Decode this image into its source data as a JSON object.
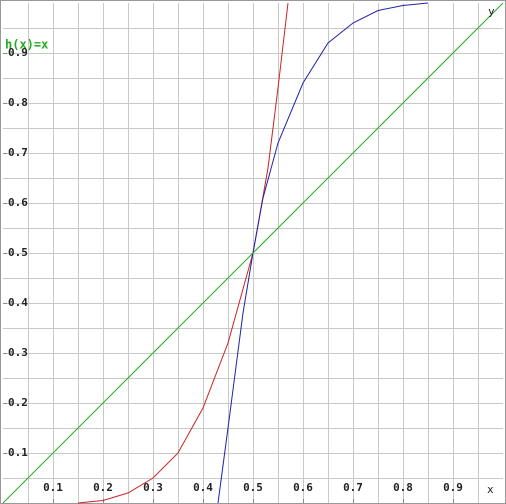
{
  "chart_data": {
    "type": "line",
    "x_label": "x",
    "y_label": "y",
    "annotation": "h(x)=x",
    "xlim": [
      0,
      1
    ],
    "ylim": [
      0,
      1
    ],
    "xticks": [
      0.1,
      0.2,
      0.3,
      0.4,
      0.5,
      0.6,
      0.7,
      0.8,
      0.9
    ],
    "yticks": [
      0.1,
      0.2,
      0.3,
      0.4,
      0.5,
      0.6,
      0.7,
      0.8,
      0.9
    ],
    "xgrid": [
      0.05,
      0.1,
      0.15,
      0.2,
      0.25,
      0.3,
      0.35,
      0.4,
      0.45,
      0.5,
      0.55,
      0.6,
      0.65,
      0.7,
      0.75,
      0.8,
      0.85,
      0.9,
      0.95
    ],
    "ygrid": [
      0.05,
      0.1,
      0.15,
      0.2,
      0.25,
      0.3,
      0.35,
      0.4,
      0.45,
      0.5,
      0.55,
      0.6,
      0.65,
      0.7,
      0.75,
      0.8,
      0.85,
      0.9,
      0.95
    ],
    "grid": true,
    "series": [
      {
        "color": "#cc2222",
        "x": [
          0.15,
          0.2,
          0.25,
          0.3,
          0.35,
          0.4,
          0.45,
          0.5,
          0.53,
          0.55,
          0.57
        ],
        "values": [
          0,
          0.005,
          0.02,
          0.05,
          0.1,
          0.19,
          0.32,
          0.5,
          0.67,
          0.83,
          1.0
        ]
      },
      {
        "color": "#2222aa",
        "x": [
          0.43,
          0.45,
          0.48,
          0.5,
          0.52,
          0.55,
          0.6,
          0.65,
          0.7,
          0.75,
          0.8,
          0.85
        ],
        "values": [
          0,
          0.15,
          0.38,
          0.5,
          0.61,
          0.72,
          0.84,
          0.92,
          0.96,
          0.985,
          0.995,
          1.0
        ]
      },
      {
        "color": "#22aa22",
        "x": [
          0,
          1
        ],
        "values": [
          0,
          1
        ]
      }
    ]
  }
}
